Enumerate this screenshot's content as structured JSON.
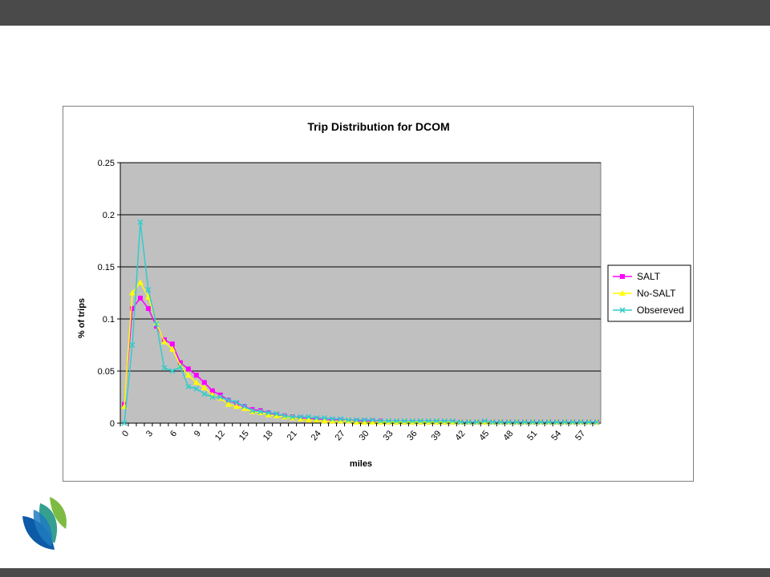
{
  "slide": {
    "bar_color": "#4a4a4a",
    "logo_icon": "leaf-logo-icon"
  },
  "chart_data": {
    "type": "line",
    "title": "Trip Distribution for DCOM",
    "xlabel": "miles",
    "ylabel": "% of trips",
    "ylim": [
      0,
      0.25
    ],
    "yticks": [
      "0",
      "0.05",
      "0.1",
      "0.15",
      "0.2",
      "0.25"
    ],
    "xtick_labels": [
      "0",
      "3",
      "6",
      "9",
      "12",
      "15",
      "18",
      "21",
      "24",
      "27",
      "30",
      "33",
      "36",
      "39",
      "42",
      "45",
      "48",
      "51",
      "54",
      "57"
    ],
    "x": [
      0,
      1,
      2,
      3,
      4,
      5,
      6,
      7,
      8,
      9,
      10,
      11,
      12,
      13,
      14,
      15,
      16,
      17,
      18,
      19,
      20,
      21,
      22,
      23,
      24,
      25,
      26,
      27,
      28,
      29,
      30,
      31,
      32,
      33,
      34,
      35,
      36,
      37,
      38,
      39,
      40,
      41,
      42,
      43,
      44,
      45,
      46,
      47,
      48,
      49,
      50,
      51,
      52,
      53,
      54,
      55,
      56,
      57,
      58,
      59
    ],
    "plot_background": "#c0c0c0",
    "grid": "horizontal",
    "legend_position": "right",
    "series": [
      {
        "name": "SALT",
        "color": "#ff00ff",
        "marker": "square",
        "values": [
          0.018,
          0.11,
          0.12,
          0.11,
          0.093,
          0.08,
          0.076,
          0.058,
          0.052,
          0.046,
          0.039,
          0.031,
          0.027,
          0.022,
          0.019,
          0.016,
          0.013,
          0.012,
          0.01,
          0.008,
          0.007,
          0.006,
          0.005,
          0.004,
          0.004,
          0.003,
          0.003,
          0.003,
          0.002,
          0.002,
          0.002,
          0.002,
          0.002,
          0.001,
          0.001,
          0.001,
          0.001,
          0.001,
          0.001,
          0.001,
          0.001,
          0.001,
          0.001,
          0.001,
          0.001,
          0.001,
          0.001,
          0.001,
          0.001,
          0.001,
          0.001,
          0.001,
          0.001,
          0.001,
          0.001,
          0.001,
          0.001,
          0.001,
          0.001,
          0.001
        ]
      },
      {
        "name": "No-SALT",
        "color": "#ffff00",
        "marker": "triangle",
        "values": [
          0.016,
          0.125,
          0.135,
          0.121,
          0.096,
          0.078,
          0.071,
          0.055,
          0.046,
          0.039,
          0.034,
          0.027,
          0.024,
          0.018,
          0.016,
          0.014,
          0.011,
          0.01,
          0.008,
          0.007,
          0.006,
          0.005,
          0.004,
          0.003,
          0.003,
          0.002,
          0.002,
          0.002,
          0.002,
          0.001,
          0.001,
          0.001,
          0.001,
          0.001,
          0.001,
          0.001,
          0.001,
          0.001,
          0.001,
          0.001,
          0.001,
          0.001,
          0.001,
          0.001,
          0.001,
          0.001,
          0.001,
          0.001,
          0.001,
          0.001,
          0.001,
          0.001,
          0.001,
          0.001,
          0.001,
          0.001,
          0.001,
          0.001,
          0.001,
          0.001
        ]
      },
      {
        "name": "Obsereved",
        "color": "#33cccc",
        "marker": "x",
        "values": [
          0.0,
          0.075,
          0.193,
          0.128,
          0.095,
          0.053,
          0.05,
          0.054,
          0.035,
          0.033,
          0.028,
          0.025,
          0.025,
          0.022,
          0.02,
          0.016,
          0.012,
          0.011,
          0.01,
          0.009,
          0.007,
          0.006,
          0.006,
          0.006,
          0.005,
          0.005,
          0.004,
          0.004,
          0.003,
          0.003,
          0.003,
          0.003,
          0.002,
          0.002,
          0.002,
          0.002,
          0.002,
          0.002,
          0.002,
          0.002,
          0.002,
          0.002,
          0.001,
          0.001,
          0.001,
          0.002,
          0.001,
          0.001,
          0.001,
          0.001,
          0.001,
          0.001,
          0.001,
          0.001,
          0.001,
          0.001,
          0.001,
          0.001,
          0.001,
          0.001
        ]
      }
    ]
  }
}
